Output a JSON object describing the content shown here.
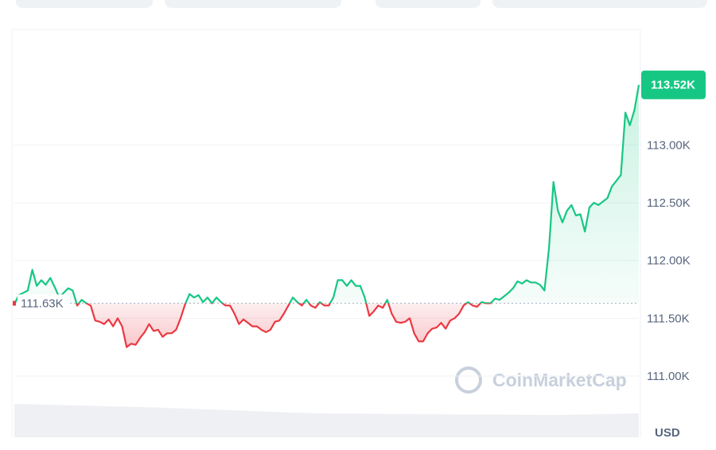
{
  "chart_data": {
    "type": "line",
    "unit": "USD",
    "watermark": "CoinMarketCap",
    "color_up": "#16c784",
    "color_down": "#ea3943",
    "baseline": 111.63,
    "baseline_label": "111.63K",
    "last_label": "113.52K",
    "values": [
      111.62,
      111.7,
      111.72,
      111.74,
      111.92,
      111.78,
      111.83,
      111.79,
      111.85,
      111.77,
      111.68,
      111.72,
      111.76,
      111.74,
      111.61,
      111.66,
      111.63,
      111.61,
      111.48,
      111.47,
      111.45,
      111.49,
      111.43,
      111.5,
      111.43,
      111.25,
      111.28,
      111.27,
      111.33,
      111.38,
      111.45,
      111.39,
      111.4,
      111.34,
      111.37,
      111.37,
      111.4,
      111.5,
      111.62,
      111.71,
      111.68,
      111.7,
      111.64,
      111.68,
      111.63,
      111.68,
      111.64,
      111.61,
      111.61,
      111.54,
      111.45,
      111.49,
      111.46,
      111.43,
      111.43,
      111.4,
      111.38,
      111.4,
      111.47,
      111.48,
      111.54,
      111.61,
      111.68,
      111.64,
      111.61,
      111.66,
      111.61,
      111.59,
      111.64,
      111.61,
      111.61,
      111.68,
      111.83,
      111.83,
      111.78,
      111.83,
      111.78,
      111.78,
      111.68,
      111.52,
      111.56,
      111.61,
      111.59,
      111.66,
      111.54,
      111.47,
      111.46,
      111.47,
      111.5,
      111.37,
      111.3,
      111.3,
      111.37,
      111.41,
      111.42,
      111.46,
      111.41,
      111.48,
      111.5,
      111.54,
      111.61,
      111.64,
      111.61,
      111.6,
      111.64,
      111.63,
      111.63,
      111.67,
      111.66,
      111.69,
      111.72,
      111.76,
      111.82,
      111.8,
      111.83,
      111.81,
      111.81,
      111.79,
      111.74,
      112.11,
      112.68,
      112.43,
      112.33,
      112.43,
      112.48,
      112.39,
      112.4,
      112.25,
      112.46,
      112.5,
      112.48,
      112.51,
      112.54,
      112.64,
      112.69,
      112.74,
      113.28,
      113.17,
      113.3,
      113.52
    ],
    "ylim": [
      110.47,
      114.0
    ],
    "yticks": [
      {
        "value": 111,
        "label": "111.00K"
      },
      {
        "value": 111.5,
        "label": "111.50K"
      },
      {
        "value": 112,
        "label": "112.00K"
      },
      {
        "value": 112.5,
        "label": "112.50K"
      },
      {
        "value": 113,
        "label": "113.00K"
      }
    ],
    "grid": true
  }
}
